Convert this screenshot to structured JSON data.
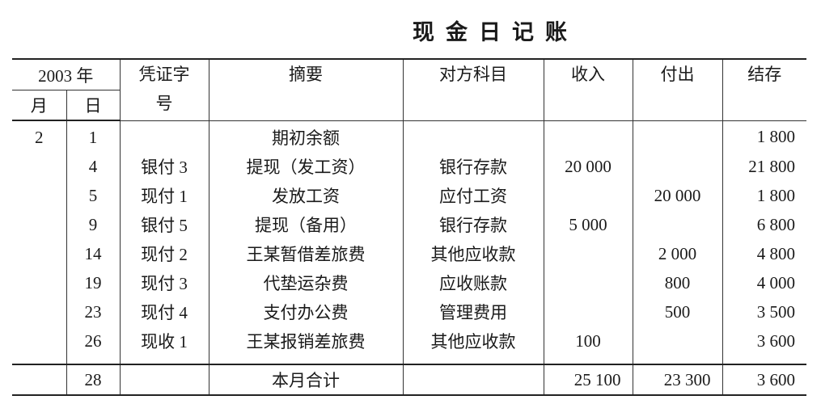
{
  "title": "现金日记账",
  "header": {
    "year": "2003 年",
    "month": "月",
    "day": "日",
    "voucher": "凭证字号",
    "summary": "摘要",
    "account": "对方科目",
    "income": "收入",
    "expense": "付出",
    "balance": "结存"
  },
  "rows": [
    {
      "month": "2",
      "day": "1",
      "voucher": "",
      "summary": "期初余额",
      "account": "",
      "income": "",
      "expense": "",
      "balance": "1 800"
    },
    {
      "month": "",
      "day": "4",
      "voucher": "银付 3",
      "summary": "提现（发工资）",
      "account": "银行存款",
      "income": "20 000",
      "expense": "",
      "balance": "21 800"
    },
    {
      "month": "",
      "day": "5",
      "voucher": "现付 1",
      "summary": "发放工资",
      "account": "应付工资",
      "income": "",
      "expense": "20 000",
      "balance": "1 800"
    },
    {
      "month": "",
      "day": "9",
      "voucher": "银付 5",
      "summary": "提现（备用）",
      "account": "银行存款",
      "income": "5 000",
      "expense": "",
      "balance": "6 800"
    },
    {
      "month": "",
      "day": "14",
      "voucher": "现付 2",
      "summary": "王某暂借差旅费",
      "account": "其他应收款",
      "income": "",
      "expense": "2 000",
      "balance": "4 800"
    },
    {
      "month": "",
      "day": "19",
      "voucher": "现付 3",
      "summary": "代垫运杂费",
      "account": "应收账款",
      "income": "",
      "expense": "800",
      "balance": "4 000"
    },
    {
      "month": "",
      "day": "23",
      "voucher": "现付 4",
      "summary": "支付办公费",
      "account": "管理费用",
      "income": "",
      "expense": "500",
      "balance": "3 500"
    },
    {
      "month": "",
      "day": "26",
      "voucher": "现收 1",
      "summary": "王某报销差旅费",
      "account": "其他应收款",
      "income": "100",
      "expense": "",
      "balance": "3 600"
    }
  ],
  "total": {
    "month": "",
    "day": "28",
    "voucher": "",
    "summary": "本月合计",
    "account": "",
    "income": "25 100",
    "expense": "23 300",
    "balance": "3 600"
  }
}
